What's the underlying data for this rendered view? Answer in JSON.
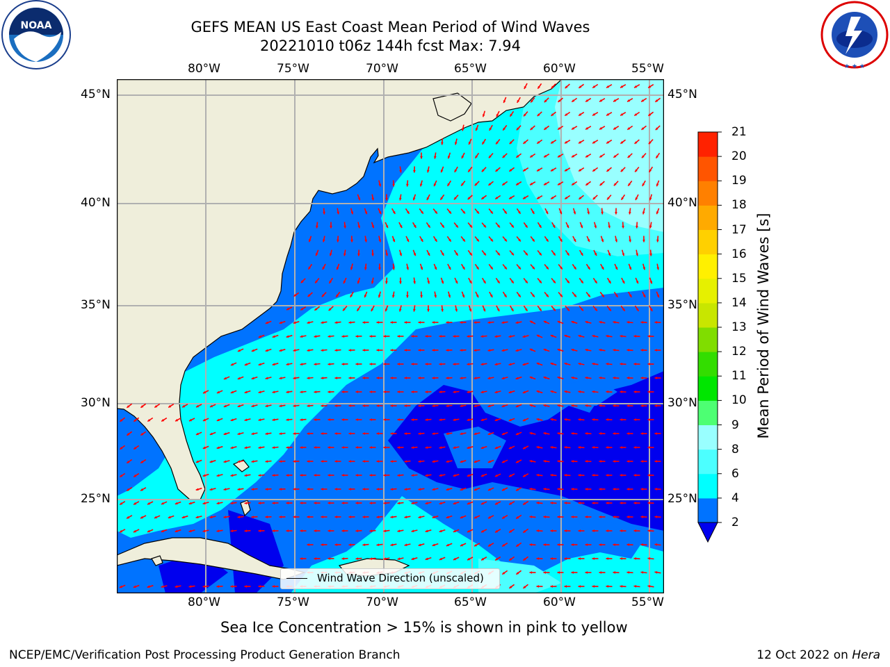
{
  "header": {
    "title_line1": "GEFS MEAN US East Coast Mean Period of Wind Waves",
    "title_line2": "20221010 t06z 144h fcst   Max: 7.94"
  },
  "logos": {
    "left": {
      "name": "noaa-logo",
      "text": "NOAA",
      "ring_text": "NATIONAL OCEANIC AND ATMOSPHERIC ADMINISTRATION · U.S. DEPARTMENT OF COMMERCE"
    },
    "right": {
      "name": "nws-logo",
      "ring_text": "NATIONAL WEATHER SERVICE"
    }
  },
  "map": {
    "lon_labels": [
      "80°W",
      "75°W",
      "70°W",
      "65°W",
      "60°W",
      "55°W"
    ],
    "lat_labels": [
      "45°N",
      "40°N",
      "35°N",
      "30°N",
      "25°N"
    ],
    "legend_label": "Wind Wave Direction (unscaled)",
    "colors": {
      "land": "#efeedb",
      "dark_blue": "#0000ee",
      "mid_blue": "#0073ff",
      "cyan": "#00ffff",
      "light_cyan": "#4cffff",
      "pale_cyan": "#99ffff",
      "arrow": "#ff0000",
      "grid": "#b0b0b0"
    }
  },
  "colorbar": {
    "label": "Mean Period of Wind Waves [s]",
    "ticks": [
      "2",
      "4",
      "6",
      "8",
      "9",
      "10",
      "11",
      "12",
      "13",
      "14",
      "15",
      "16",
      "17",
      "18",
      "19",
      "20",
      "21"
    ],
    "colors": [
      "#0000ee",
      "#0073ff",
      "#00ffff",
      "#4cffff",
      "#99ffff",
      "#4dff73",
      "#00e600",
      "#33dd00",
      "#80dd00",
      "#c8e600",
      "#e6f000",
      "#fff000",
      "#ffd000",
      "#ffaa00",
      "#ff8000",
      "#ff5500",
      "#ff2200",
      "#ff0000"
    ]
  },
  "caption": "Sea Ice Concentration > 15% is shown in pink to yellow",
  "footer": {
    "left": "NCEP/EMC/Verification Post Processing Product Generation Branch",
    "right_date": "12 Oct 2022 on ",
    "right_host": "Hera"
  }
}
